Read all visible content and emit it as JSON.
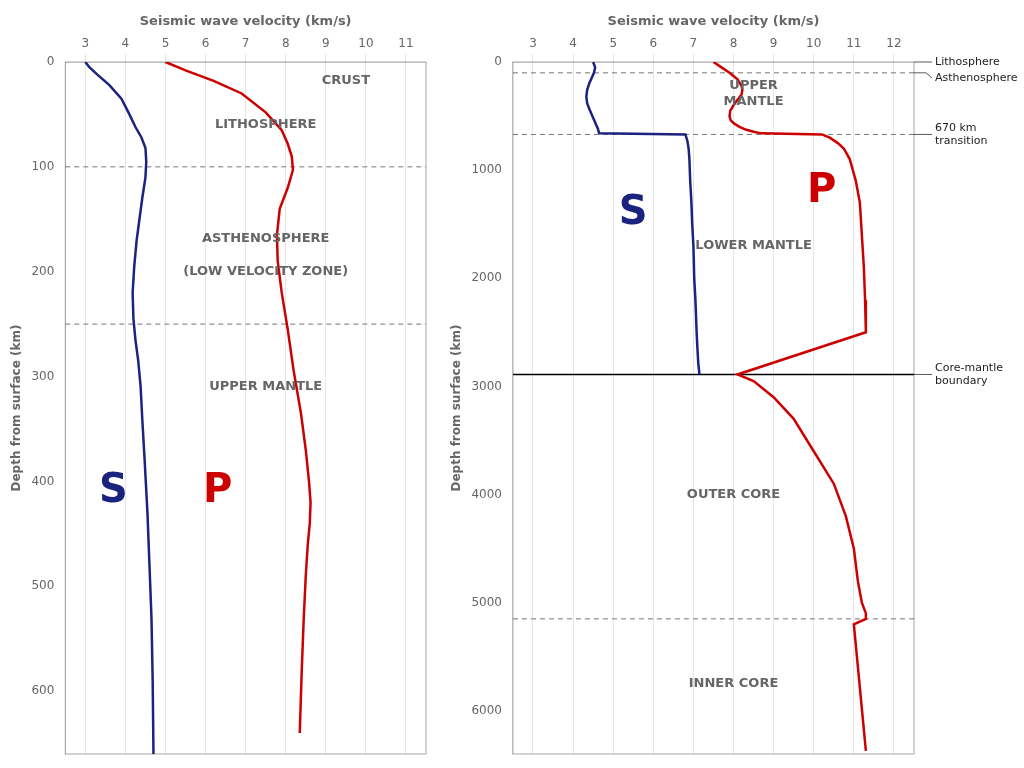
{
  "chart_data": [
    {
      "type": "line",
      "x_label": "Seismic wave velocity (km/s)",
      "y_label": "Depth from surface (km)",
      "xlim": [
        2.5,
        11.5
      ],
      "ylim": [
        660,
        0
      ],
      "xticks": [
        3,
        4,
        5,
        6,
        7,
        8,
        9,
        10,
        11
      ],
      "yticks": [
        0,
        100,
        200,
        300,
        400,
        500,
        600
      ],
      "grid": "x",
      "series": [
        {
          "color": "#1A237E",
          "x": [
            3.0,
            3.1,
            3.3,
            3.6,
            3.9,
            4.1,
            4.25,
            4.4,
            4.5,
            4.52,
            4.5,
            4.42,
            4.35,
            4.28,
            4.22,
            4.18,
            4.2,
            4.25,
            4.32,
            4.38,
            4.42,
            4.48,
            4.55,
            4.6,
            4.65,
            4.68,
            4.7
          ],
          "y": [
            0,
            5,
            12,
            22,
            35,
            50,
            62,
            72,
            82,
            95,
            110,
            130,
            150,
            170,
            195,
            220,
            245,
            265,
            285,
            310,
            340,
            380,
            430,
            480,
            530,
            590,
            660
          ]
        },
        {
          "color": "#CC0000",
          "x": [
            5.0,
            5.5,
            6.2,
            6.9,
            7.5,
            7.9,
            8.05,
            8.15,
            8.18,
            8.05,
            7.85,
            7.78,
            7.8,
            7.9,
            8.05,
            8.2,
            8.38,
            8.5,
            8.58,
            8.62,
            8.6,
            8.55,
            8.5,
            8.45,
            8.4,
            8.35
          ],
          "y": [
            0,
            8,
            18,
            30,
            48,
            65,
            78,
            90,
            103,
            120,
            140,
            165,
            190,
            220,
            255,
            295,
            335,
            370,
            400,
            420,
            440,
            460,
            490,
            530,
            580,
            640
          ]
        }
      ],
      "hlines": [
        {
          "value": 100,
          "color": "#777777",
          "line_style": "dashed"
        },
        {
          "value": 250,
          "color": "#777777",
          "line_style": "dashed"
        }
      ],
      "annotations": [
        {
          "text": "CRUST",
          "x": 9.5,
          "y": 18
        },
        {
          "text": "LITHOSPHERE",
          "x": 7.5,
          "y": 60
        },
        {
          "text": "ASTHENOSPHERE",
          "x": 7.5,
          "y": 168
        },
        {
          "text": "(LOW VELOCITY ZONE)",
          "x": 7.5,
          "y": 200
        },
        {
          "text": "UPPER MANTLE",
          "x": 7.5,
          "y": 310
        },
        {
          "text": "S",
          "x": 3.7,
          "y": 410,
          "color": "#1A237E"
        },
        {
          "text": "P",
          "x": 6.3,
          "y": 410,
          "color": "#CC0000"
        }
      ]
    },
    {
      "type": "line",
      "x_label": "Seismic wave velocity (km/s)",
      "y_label": "Depth from surface (km)",
      "xlim": [
        2.5,
        12.5
      ],
      "ylim": [
        6400,
        0
      ],
      "xticks": [
        3,
        4,
        5,
        6,
        7,
        8,
        9,
        10,
        11,
        12
      ],
      "yticks": [
        0,
        1000,
        2000,
        3000,
        4000,
        5000,
        6000
      ],
      "grid": "x",
      "series": [
        {
          "color": "#1A237E",
          "x": [
            4.5,
            4.55,
            4.52,
            4.46,
            4.4,
            4.35,
            4.33,
            4.35,
            4.4,
            4.48,
            4.55,
            4.62,
            4.65,
            6.8,
            6.85,
            6.88,
            6.9,
            6.92,
            6.95,
            6.97,
            7.0,
            7.02,
            7.05,
            7.08,
            7.1,
            7.12,
            7.15
          ],
          "y": [
            0,
            50,
            100,
            150,
            200,
            260,
            320,
            380,
            430,
            500,
            560,
            620,
            660,
            670,
            730,
            800,
            900,
            1100,
            1300,
            1500,
            1700,
            2000,
            2200,
            2500,
            2650,
            2780,
            2890
          ]
        },
        {
          "color": "#CC0000",
          "x": [
            7.5,
            7.7,
            7.9,
            8.0,
            8.1,
            8.15,
            8.2,
            8.22,
            8.2,
            8.1,
            8.0,
            7.92,
            7.9,
            7.93,
            8.02,
            8.15,
            8.3,
            8.5,
            8.7,
            10.2,
            10.4,
            10.6,
            10.75,
            10.9,
            11.05,
            11.15,
            11.2,
            11.25,
            11.28,
            11.3,
            8.1,
            8.5,
            9.0,
            9.5,
            10.0,
            10.5,
            10.8,
            11.0,
            11.1,
            11.2,
            11.3,
            11.3,
            11.0,
            11.3
          ],
          "y": [
            0,
            50,
            100,
            130,
            160,
            190,
            220,
            260,
            300,
            350,
            400,
            450,
            500,
            540,
            570,
            600,
            625,
            645,
            660,
            670,
            700,
            750,
            800,
            900,
            1100,
            1300,
            1600,
            1900,
            2200,
            2500,
            2890,
            2950,
            3100,
            3300,
            3600,
            3900,
            4200,
            4500,
            4800,
            5000,
            5100,
            5150,
            5200,
            6371
          ]
        }
      ],
      "hlines": [
        {
          "value": 100,
          "color": "#777777",
          "line_style": "dashed"
        },
        {
          "value": 670,
          "color": "#777777",
          "line_style": "dashed"
        },
        {
          "value": 2890,
          "color": "#000000",
          "line_style": "solid"
        },
        {
          "value": 5150,
          "color": "#777777",
          "line_style": "dashed"
        }
      ],
      "annotations": [
        {
          "text": "UPPER\nMANTLE",
          "x": 8.5,
          "y": 290
        },
        {
          "text": "LOWER MANTLE",
          "x": 8.5,
          "y": 1700
        },
        {
          "text": "OUTER CORE",
          "x": 8.0,
          "y": 4000
        },
        {
          "text": "INNER CORE",
          "x": 8.0,
          "y": 5750
        },
        {
          "text": "S",
          "x": 5.5,
          "y": 1400,
          "color": "#1A237E"
        },
        {
          "text": "P",
          "x": 10.2,
          "y": 1200,
          "color": "#CC0000"
        }
      ],
      "side_labels": [
        {
          "text": "Lithosphere",
          "y": 0
        },
        {
          "text": "Asthenosphere",
          "y": 100
        },
        {
          "text": "670 km\ntransition",
          "y": 670
        },
        {
          "text": "Core-mantle\nboundary",
          "y": 2890
        }
      ]
    }
  ]
}
